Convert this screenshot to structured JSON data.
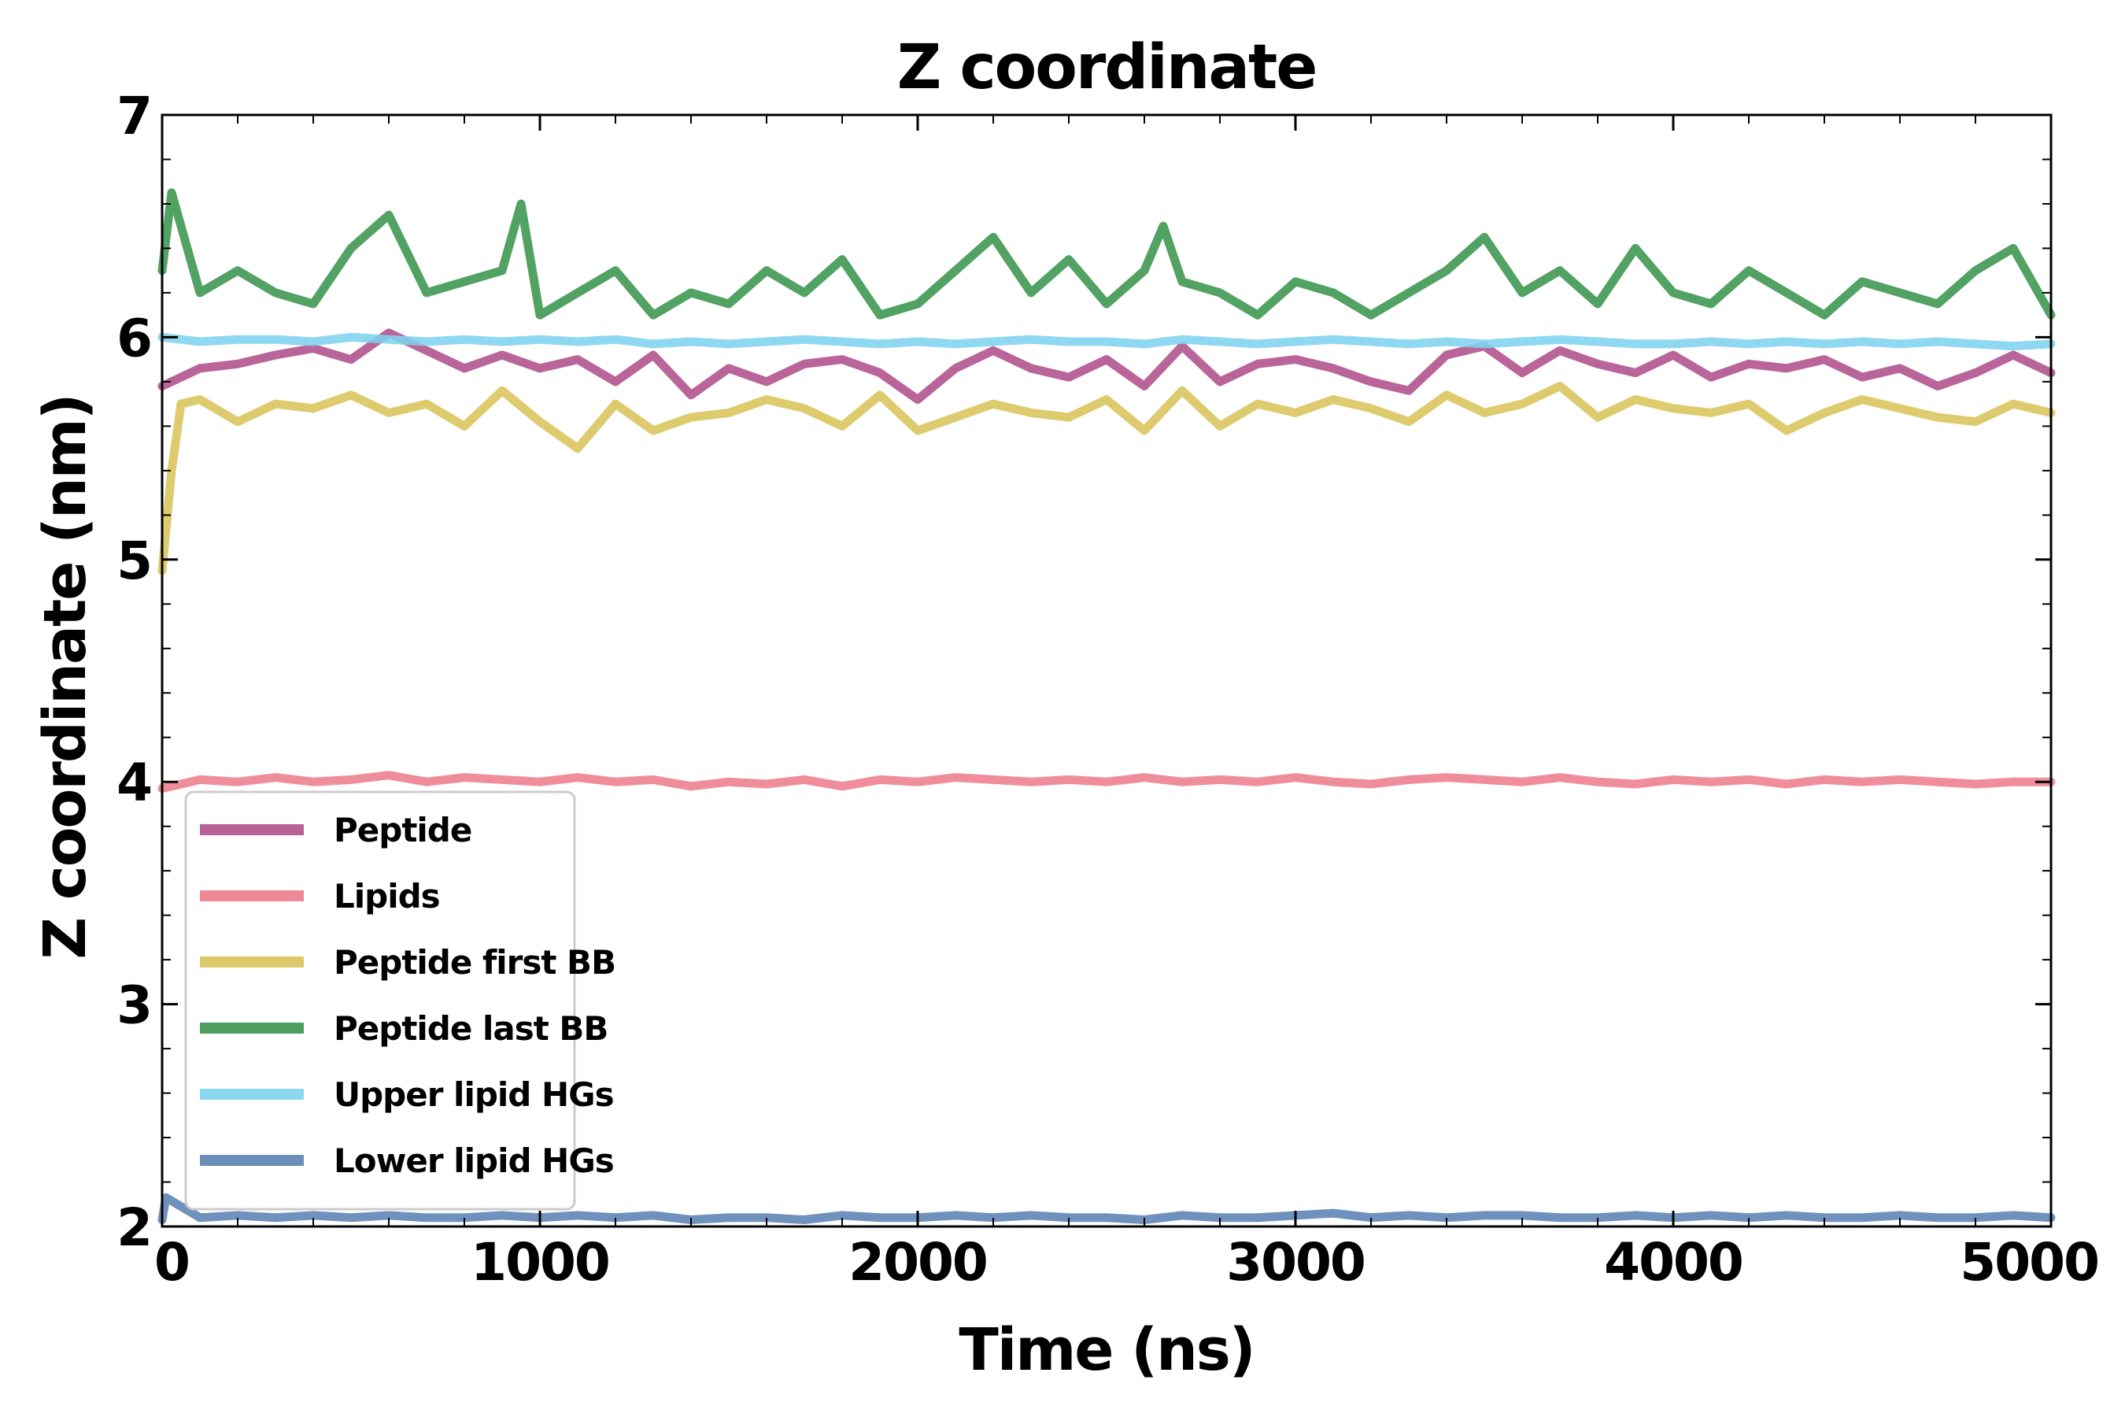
{
  "chart_data": {
    "type": "line",
    "title": "Z coordinate",
    "xlabel": "Time (ns)",
    "ylabel": "Z coordinate (nm)",
    "xlim": [
      0,
      5000
    ],
    "ylim": [
      2,
      7
    ],
    "xticks": [
      0,
      1000,
      2000,
      3000,
      4000,
      5000
    ],
    "yticks": [
      2,
      3,
      4,
      5,
      6,
      7
    ],
    "grid": false,
    "legend_position": "lower-left",
    "series": [
      {
        "name": "Peptide",
        "color": "#b0508c",
        "x": [
          0,
          100,
          200,
          300,
          400,
          500,
          600,
          700,
          800,
          900,
          1000,
          1100,
          1200,
          1300,
          1400,
          1500,
          1600,
          1700,
          1800,
          1900,
          2000,
          2100,
          2200,
          2300,
          2400,
          2500,
          2600,
          2700,
          2800,
          2900,
          3000,
          3100,
          3200,
          3300,
          3400,
          3500,
          3600,
          3700,
          3800,
          3900,
          4000,
          4100,
          4200,
          4300,
          4400,
          4500,
          4600,
          4700,
          4800,
          4900,
          5000
        ],
        "y": [
          5.78,
          5.86,
          5.88,
          5.92,
          5.95,
          5.9,
          6.02,
          5.94,
          5.86,
          5.92,
          5.86,
          5.9,
          5.8,
          5.92,
          5.74,
          5.86,
          5.8,
          5.88,
          5.9,
          5.84,
          5.72,
          5.86,
          5.94,
          5.86,
          5.82,
          5.9,
          5.78,
          5.96,
          5.8,
          5.88,
          5.9,
          5.86,
          5.8,
          5.76,
          5.92,
          5.96,
          5.84,
          5.94,
          5.88,
          5.84,
          5.92,
          5.82,
          5.88,
          5.86,
          5.9,
          5.82,
          5.86,
          5.78,
          5.84,
          5.92,
          5.84
        ]
      },
      {
        "name": "Lipids",
        "color": "#ee7d8c",
        "x": [
          0,
          100,
          200,
          300,
          400,
          500,
          600,
          700,
          800,
          900,
          1000,
          1100,
          1200,
          1300,
          1400,
          1500,
          1600,
          1700,
          1800,
          1900,
          2000,
          2100,
          2200,
          2300,
          2400,
          2500,
          2600,
          2700,
          2800,
          2900,
          3000,
          3100,
          3200,
          3300,
          3400,
          3500,
          3600,
          3700,
          3800,
          3900,
          4000,
          4100,
          4200,
          4300,
          4400,
          4500,
          4600,
          4700,
          4800,
          4900,
          5000
        ],
        "y": [
          3.97,
          4.01,
          4.0,
          4.02,
          4.0,
          4.01,
          4.03,
          4.0,
          4.02,
          4.01,
          4.0,
          4.02,
          4.0,
          4.01,
          3.98,
          4.0,
          3.99,
          4.01,
          3.98,
          4.01,
          4.0,
          4.02,
          4.01,
          4.0,
          4.01,
          4.0,
          4.02,
          4.0,
          4.01,
          4.0,
          4.02,
          4.0,
          3.99,
          4.01,
          4.02,
          4.01,
          4.0,
          4.02,
          4.0,
          3.99,
          4.01,
          4.0,
          4.01,
          3.99,
          4.01,
          4.0,
          4.01,
          4.0,
          3.99,
          4.0,
          4.0
        ]
      },
      {
        "name": "Peptide first BB",
        "color": "#d8c45a",
        "x": [
          0,
          25,
          50,
          100,
          200,
          300,
          400,
          500,
          600,
          700,
          800,
          900,
          1000,
          1100,
          1200,
          1300,
          1400,
          1500,
          1600,
          1700,
          1800,
          1900,
          2000,
          2100,
          2200,
          2300,
          2400,
          2500,
          2600,
          2700,
          2800,
          2900,
          3000,
          3100,
          3200,
          3300,
          3400,
          3500,
          3600,
          3700,
          3800,
          3900,
          4000,
          4100,
          4200,
          4300,
          4400,
          4500,
          4600,
          4700,
          4800,
          4900,
          5000
        ],
        "y": [
          4.95,
          5.4,
          5.7,
          5.72,
          5.62,
          5.7,
          5.68,
          5.74,
          5.66,
          5.7,
          5.6,
          5.76,
          5.62,
          5.5,
          5.7,
          5.58,
          5.64,
          5.66,
          5.72,
          5.68,
          5.6,
          5.74,
          5.58,
          5.64,
          5.7,
          5.66,
          5.64,
          5.72,
          5.58,
          5.76,
          5.6,
          5.7,
          5.66,
          5.72,
          5.68,
          5.62,
          5.74,
          5.66,
          5.7,
          5.78,
          5.64,
          5.72,
          5.68,
          5.66,
          5.7,
          5.58,
          5.66,
          5.72,
          5.68,
          5.64,
          5.62,
          5.7,
          5.66
        ]
      },
      {
        "name": "Peptide last BB",
        "color": "#3a954f",
        "x": [
          0,
          25,
          100,
          200,
          300,
          400,
          500,
          600,
          700,
          800,
          900,
          950,
          1000,
          1100,
          1200,
          1300,
          1400,
          1500,
          1600,
          1700,
          1800,
          1900,
          2000,
          2100,
          2200,
          2300,
          2400,
          2500,
          2600,
          2650,
          2700,
          2800,
          2900,
          3000,
          3100,
          3200,
          3300,
          3400,
          3500,
          3600,
          3700,
          3800,
          3900,
          4000,
          4100,
          4200,
          4300,
          4400,
          4500,
          4600,
          4700,
          4800,
          4900,
          5000
        ],
        "y": [
          6.3,
          6.65,
          6.2,
          6.3,
          6.2,
          6.15,
          6.4,
          6.55,
          6.2,
          6.25,
          6.3,
          6.6,
          6.1,
          6.2,
          6.3,
          6.1,
          6.2,
          6.15,
          6.3,
          6.2,
          6.35,
          6.1,
          6.15,
          6.3,
          6.45,
          6.2,
          6.35,
          6.15,
          6.3,
          6.5,
          6.25,
          6.2,
          6.1,
          6.25,
          6.2,
          6.1,
          6.2,
          6.3,
          6.45,
          6.2,
          6.3,
          6.15,
          6.4,
          6.2,
          6.15,
          6.3,
          6.2,
          6.1,
          6.25,
          6.2,
          6.15,
          6.3,
          6.4,
          6.1
        ]
      },
      {
        "name": "Upper lipid HGs",
        "color": "#7fd3ef",
        "x": [
          0,
          100,
          200,
          300,
          400,
          500,
          600,
          700,
          800,
          900,
          1000,
          1100,
          1200,
          1300,
          1400,
          1500,
          1600,
          1700,
          1800,
          1900,
          2000,
          2100,
          2200,
          2300,
          2400,
          2500,
          2600,
          2700,
          2800,
          2900,
          3000,
          3100,
          3200,
          3300,
          3400,
          3500,
          3600,
          3700,
          3800,
          3900,
          4000,
          4100,
          4200,
          4300,
          4400,
          4500,
          4600,
          4700,
          4800,
          4900,
          5000
        ],
        "y": [
          6.0,
          5.98,
          5.99,
          5.99,
          5.98,
          6.0,
          5.99,
          5.98,
          5.99,
          5.98,
          5.99,
          5.98,
          5.99,
          5.97,
          5.98,
          5.97,
          5.98,
          5.99,
          5.98,
          5.97,
          5.98,
          5.97,
          5.98,
          5.99,
          5.98,
          5.98,
          5.97,
          5.99,
          5.98,
          5.97,
          5.98,
          5.99,
          5.98,
          5.97,
          5.98,
          5.97,
          5.98,
          5.99,
          5.98,
          5.97,
          5.97,
          5.98,
          5.97,
          5.98,
          5.97,
          5.98,
          5.97,
          5.98,
          5.97,
          5.96,
          5.97
        ]
      },
      {
        "name": "Lower lipid HGs",
        "color": "#5b82b4",
        "x": [
          0,
          10,
          100,
          200,
          300,
          400,
          500,
          600,
          700,
          800,
          900,
          1000,
          1100,
          1200,
          1300,
          1400,
          1500,
          1600,
          1700,
          1800,
          1900,
          2000,
          2100,
          2200,
          2300,
          2400,
          2500,
          2600,
          2700,
          2800,
          2900,
          3000,
          3100,
          3200,
          3300,
          3400,
          3500,
          3600,
          3700,
          3800,
          3900,
          4000,
          4100,
          4200,
          4300,
          4400,
          4500,
          4600,
          4700,
          4800,
          4900,
          5000
        ],
        "y": [
          2.03,
          2.13,
          2.04,
          2.05,
          2.04,
          2.05,
          2.04,
          2.05,
          2.04,
          2.04,
          2.05,
          2.04,
          2.05,
          2.04,
          2.05,
          2.03,
          2.04,
          2.04,
          2.03,
          2.05,
          2.04,
          2.04,
          2.05,
          2.04,
          2.05,
          2.04,
          2.04,
          2.03,
          2.05,
          2.04,
          2.04,
          2.05,
          2.06,
          2.04,
          2.05,
          2.04,
          2.05,
          2.05,
          2.04,
          2.04,
          2.05,
          2.04,
          2.05,
          2.04,
          2.05,
          2.04,
          2.04,
          2.05,
          2.04,
          2.04,
          2.05,
          2.04
        ]
      }
    ]
  }
}
